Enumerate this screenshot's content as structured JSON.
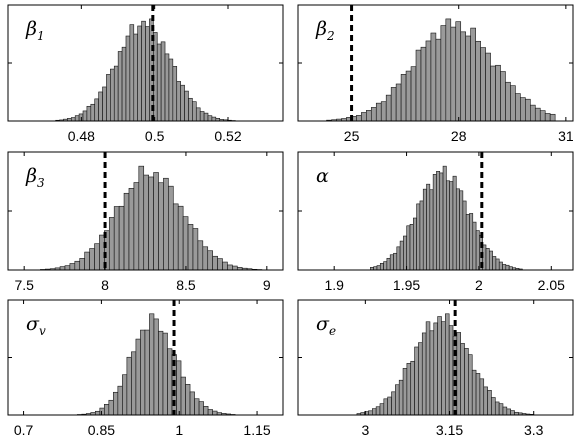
{
  "chart_data": [
    {
      "type": "histogram",
      "label": {
        "symbol": "β",
        "subscript": "1"
      },
      "xlim": [
        0.46,
        0.535
      ],
      "ticks": [
        "0.48",
        "0.5",
        "0.52"
      ],
      "tick_values": [
        0.48,
        0.5,
        0.52
      ],
      "mean": 0.497,
      "sd": 0.0075,
      "n_bins": 46,
      "bin_range": [
        0.473,
        0.522
      ],
      "skew": 0.0,
      "reference_value": 0.4995
    },
    {
      "type": "histogram",
      "label": {
        "symbol": "β",
        "subscript": "2"
      },
      "xlim": [
        23.5,
        31.2
      ],
      "ticks": [
        "25",
        "28",
        "31"
      ],
      "tick_values": [
        25,
        28,
        31
      ],
      "mean": 27.2,
      "sd": 1.35,
      "n_bins": 46,
      "bin_range": [
        24.3,
        30.7
      ],
      "skew": 0.35,
      "reference_value": 25.0
    },
    {
      "type": "histogram",
      "label": {
        "symbol": "β",
        "subscript": "3"
      },
      "xlim": [
        7.4,
        9.1
      ],
      "ticks": [
        "7.5",
        "8",
        "8.5",
        "9"
      ],
      "tick_values": [
        7.5,
        8,
        8.5,
        9
      ],
      "mean": 8.2,
      "sd": 0.22,
      "n_bins": 46,
      "bin_range": [
        7.6,
        9.0
      ],
      "skew": 0.2,
      "reference_value": 8.0
    },
    {
      "type": "histogram",
      "label": {
        "symbol": "α",
        "subscript": ""
      },
      "xlim": [
        1.875,
        2.065
      ],
      "ticks": [
        "1.9",
        "1.95",
        "2",
        "2.05"
      ],
      "tick_values": [
        1.9,
        1.95,
        2.0,
        2.05
      ],
      "mean": 1.975,
      "sd": 0.018,
      "n_bins": 46,
      "bin_range": [
        1.925,
        2.03
      ],
      "skew": 0.0,
      "reference_value": 2.002
    },
    {
      "type": "histogram",
      "label": {
        "symbol": "σ",
        "subscript": "v"
      },
      "xlim": [
        0.67,
        1.2
      ],
      "ticks": [
        "0.7",
        "0.85",
        "1",
        "1.15"
      ],
      "tick_values": [
        0.7,
        0.85,
        1.0,
        1.15
      ],
      "mean": 0.92,
      "sd": 0.055,
      "n_bins": 46,
      "bin_range": [
        0.76,
        1.16
      ],
      "skew": 0.45,
      "reference_value": 0.99
    },
    {
      "type": "histogram",
      "label": {
        "symbol": "σ",
        "subscript": "e"
      },
      "xlim": [
        2.88,
        3.37
      ],
      "ticks": [
        "3",
        "3.15",
        "3.3"
      ],
      "tick_values": [
        3.0,
        3.15,
        3.3
      ],
      "mean": 3.125,
      "sd": 0.052,
      "n_bins": 46,
      "bin_range": [
        2.985,
        3.3
      ],
      "skew": 0.1,
      "reference_value": 3.16
    }
  ]
}
